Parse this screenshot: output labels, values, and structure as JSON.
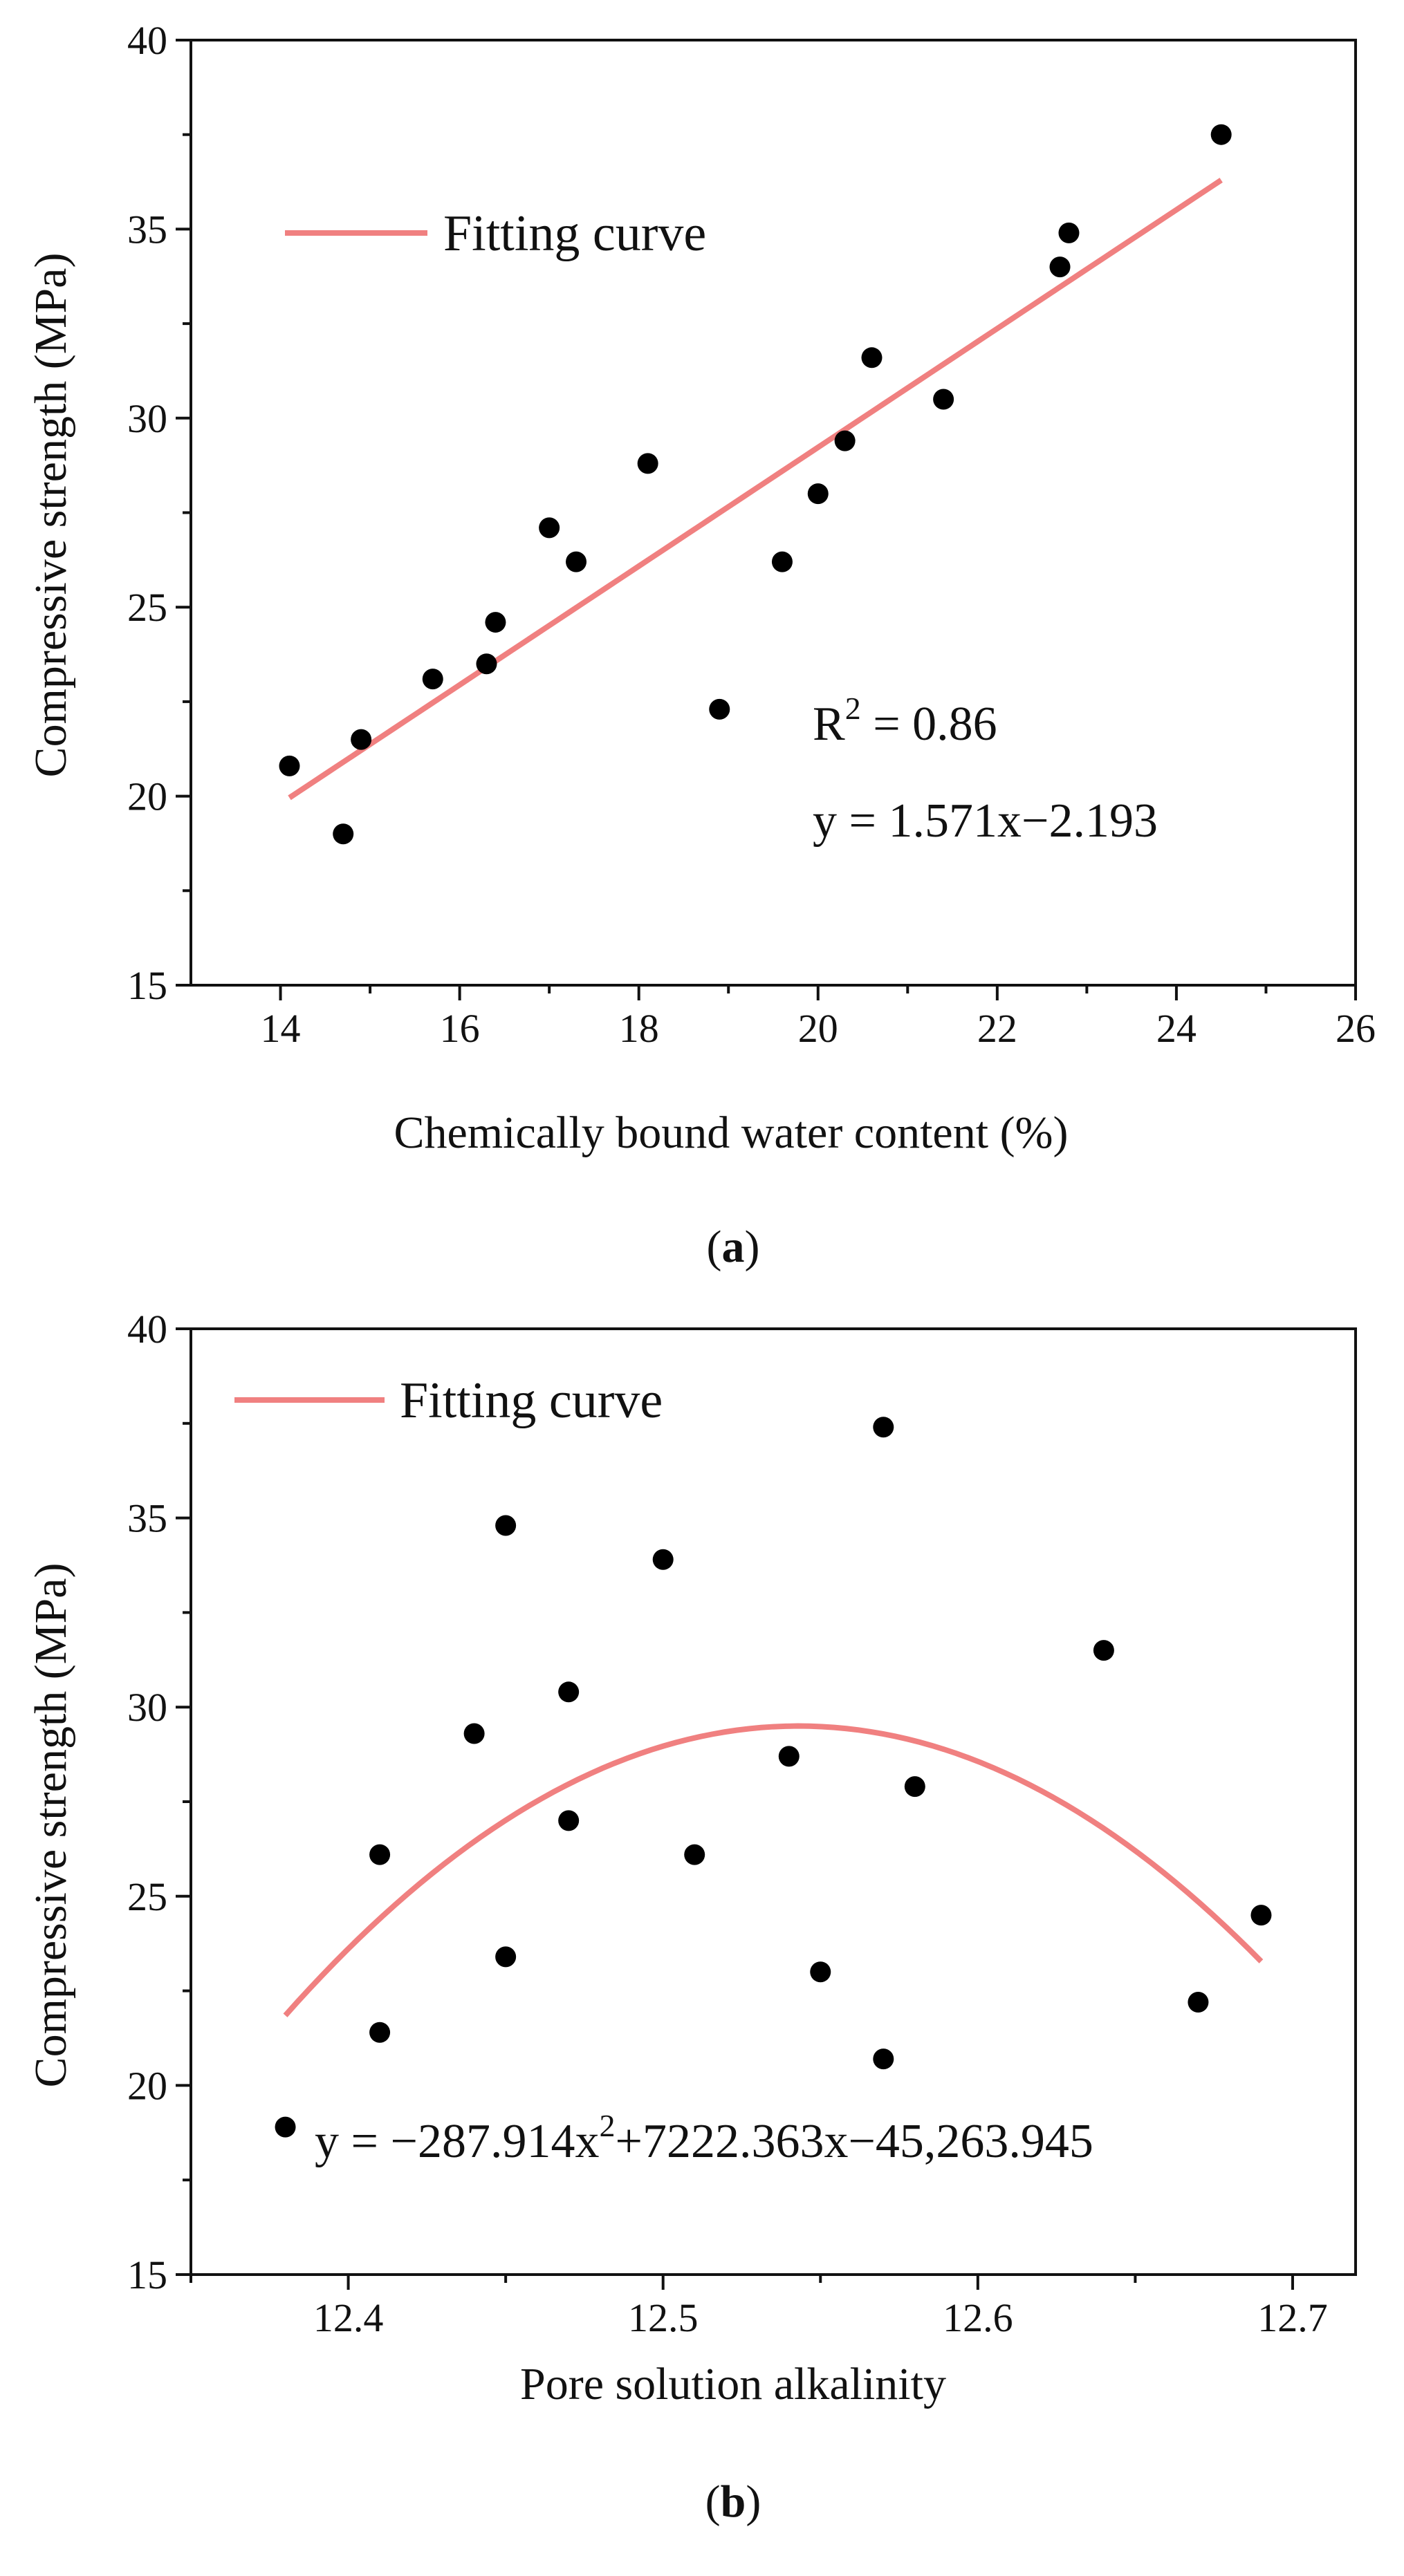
{
  "chart_data": [
    {
      "type": "scatter",
      "panel_label": "a",
      "xlabel": "Chemically bound water content (%)",
      "ylabel": "Compressive strength (MPa)",
      "xlim": [
        13,
        26
      ],
      "ylim": [
        15,
        40
      ],
      "xticks": [
        14,
        16,
        18,
        20,
        22,
        24,
        26
      ],
      "yticks": [
        15,
        20,
        25,
        30,
        35,
        40
      ],
      "legend": {
        "label": "Fitting curve",
        "position": "top-left",
        "color": "#f08080"
      },
      "annotations": {
        "r2_prefix": "R",
        "r2_power": "2",
        "r2_value": " = 0.86",
        "equation": "y = 1.571x−2.193"
      },
      "fit": {
        "type": "linear",
        "slope": 1.571,
        "intercept": -2.193,
        "x_range": [
          14.1,
          24.5
        ]
      },
      "points": [
        {
          "x": 14.1,
          "y": 20.8
        },
        {
          "x": 14.7,
          "y": 19.0
        },
        {
          "x": 14.9,
          "y": 21.5
        },
        {
          "x": 15.7,
          "y": 23.1
        },
        {
          "x": 16.3,
          "y": 23.5
        },
        {
          "x": 16.4,
          "y": 24.6
        },
        {
          "x": 17.0,
          "y": 27.1
        },
        {
          "x": 17.3,
          "y": 26.2
        },
        {
          "x": 18.1,
          "y": 28.8
        },
        {
          "x": 18.9,
          "y": 22.3
        },
        {
          "x": 19.6,
          "y": 26.2
        },
        {
          "x": 20.0,
          "y": 28.0
        },
        {
          "x": 20.3,
          "y": 29.4
        },
        {
          "x": 20.6,
          "y": 31.6
        },
        {
          "x": 21.4,
          "y": 30.5
        },
        {
          "x": 22.7,
          "y": 34.0
        },
        {
          "x": 22.8,
          "y": 34.9
        },
        {
          "x": 24.5,
          "y": 37.5
        }
      ],
      "point_color": "#000000"
    },
    {
      "type": "scatter",
      "panel_label": "b",
      "xlabel": "Pore solution alkalinity",
      "ylabel": "Compressive strength (MPa)",
      "xlim": [
        12.35,
        12.72
      ],
      "ylim": [
        15,
        40
      ],
      "xticks": [
        12.4,
        12.5,
        12.6,
        12.7
      ],
      "yticks": [
        15,
        20,
        25,
        30,
        35,
        40
      ],
      "legend": {
        "label": "Fitting curve",
        "position": "top-left",
        "color": "#f08080"
      },
      "annotations": {
        "eq_prefix": "y = −287.914x",
        "eq_power": "2",
        "eq_suffix": "+7222.363x−45,263.945"
      },
      "fit": {
        "type": "quadratic",
        "a": -287.914,
        "b": 7222.363,
        "c": -45263.945,
        "x_range": [
          12.38,
          12.69
        ],
        "vertex_x": 12.543,
        "vertex_y": 29.5
      },
      "points": [
        {
          "x": 12.38,
          "y": 18.9
        },
        {
          "x": 12.41,
          "y": 26.1
        },
        {
          "x": 12.41,
          "y": 21.4
        },
        {
          "x": 12.44,
          "y": 29.3
        },
        {
          "x": 12.45,
          "y": 34.8
        },
        {
          "x": 12.45,
          "y": 23.4
        },
        {
          "x": 12.47,
          "y": 30.4
        },
        {
          "x": 12.47,
          "y": 27.0
        },
        {
          "x": 12.5,
          "y": 33.9
        },
        {
          "x": 12.51,
          "y": 26.1
        },
        {
          "x": 12.54,
          "y": 28.7
        },
        {
          "x": 12.55,
          "y": 23.0
        },
        {
          "x": 12.57,
          "y": 37.4
        },
        {
          "x": 12.57,
          "y": 20.7
        },
        {
          "x": 12.58,
          "y": 27.9
        },
        {
          "x": 12.64,
          "y": 31.5
        },
        {
          "x": 12.67,
          "y": 22.2
        },
        {
          "x": 12.69,
          "y": 24.5
        }
      ],
      "point_color": "#000000"
    }
  ]
}
